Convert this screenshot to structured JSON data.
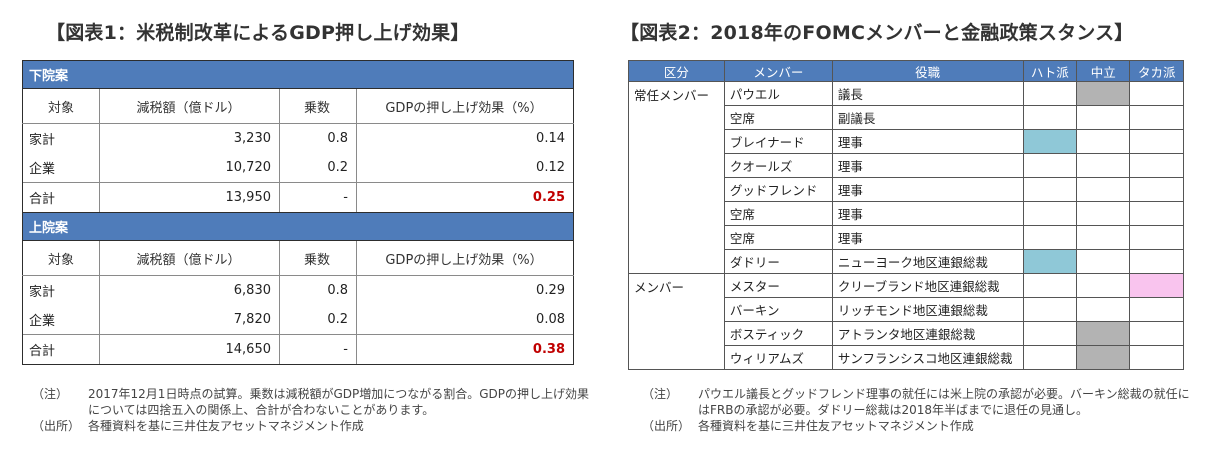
{
  "table1": {
    "title": "【図表1：米税制改革によるGDP押し上げ効果】",
    "headers": [
      "対象",
      "減税額（億ドル）",
      "乗数",
      "GDPの押し上げ効果（%）"
    ],
    "sections": [
      {
        "label": "下院案",
        "rows": [
          {
            "target": "家計",
            "tax_cut": "3,230",
            "multiplier": "0.8",
            "effect": "0.14"
          },
          {
            "target": "企業",
            "tax_cut": "10,720",
            "multiplier": "0.2",
            "effect": "0.12"
          }
        ],
        "total": {
          "target": "合計",
          "tax_cut": "13,950",
          "multiplier": "-",
          "effect": "0.25"
        }
      },
      {
        "label": "上院案",
        "rows": [
          {
            "target": "家計",
            "tax_cut": "6,830",
            "multiplier": "0.8",
            "effect": "0.29"
          },
          {
            "target": "企業",
            "tax_cut": "7,820",
            "multiplier": "0.2",
            "effect": "0.08"
          }
        ],
        "total": {
          "target": "合計",
          "tax_cut": "14,650",
          "multiplier": "-",
          "effect": "0.38"
        }
      }
    ],
    "notes": [
      {
        "label": "（注）",
        "text": "2017年12月1日時点の試算。乗数は減税額がGDP増加につながる割合。GDPの押し上げ効果については四捨五入の関係上、合計が合わないことがあります。"
      },
      {
        "label": "（出所）",
        "text": "各種資料を基に三井住友アセットマネジメント作成"
      }
    ]
  },
  "table2": {
    "title": "【図表2：2018年のFOMCメンバーと金融政策スタンス】",
    "headers": [
      "区分",
      "メンバー",
      "役職",
      "ハト派",
      "中立",
      "タカ派"
    ],
    "categories": [
      {
        "label": "常任メンバー",
        "rows": [
          {
            "name": "パウエル",
            "role": "議長",
            "stance": "neutral"
          },
          {
            "name": "空席",
            "role": "副議長",
            "stance": ""
          },
          {
            "name": "ブレイナード",
            "role": "理事",
            "stance": "dove"
          },
          {
            "name": "クオールズ",
            "role": "理事",
            "stance": ""
          },
          {
            "name": "グッドフレンド",
            "role": "理事",
            "stance": ""
          },
          {
            "name": "空席",
            "role": "理事",
            "stance": ""
          },
          {
            "name": "空席",
            "role": "理事",
            "stance": ""
          },
          {
            "name": "ダドリー",
            "role": "ニューヨーク地区連銀総裁",
            "stance": "dove"
          }
        ]
      },
      {
        "label": "メンバー",
        "rows": [
          {
            "name": "メスター",
            "role": "クリーブランド地区連銀総裁",
            "stance": "hawk"
          },
          {
            "name": "バーキン",
            "role": "リッチモンド地区連銀総裁",
            "stance": ""
          },
          {
            "name": "ボスティック",
            "role": "アトランタ地区連銀総裁",
            "stance": "neutral"
          },
          {
            "name": "ウィリアムズ",
            "role": "サンフランシスコ地区連銀総裁",
            "stance": "neutral"
          }
        ]
      }
    ],
    "stance_colors": {
      "dove": "#8fc8d7",
      "neutral": "#b3b3b3",
      "hawk": "#f9c4ee"
    },
    "notes": [
      {
        "label": "（注）",
        "text": "パウエル議長とグッドフレンド理事の就任には米上院の承認が必要。バーキン総裁の就任にはFRBの承認が必要。ダドリー総裁は2018年半ばまでに退任の見通し。"
      },
      {
        "label": "（出所）",
        "text": "各種資料を基に三井住友アセットマネジメント作成"
      }
    ]
  }
}
